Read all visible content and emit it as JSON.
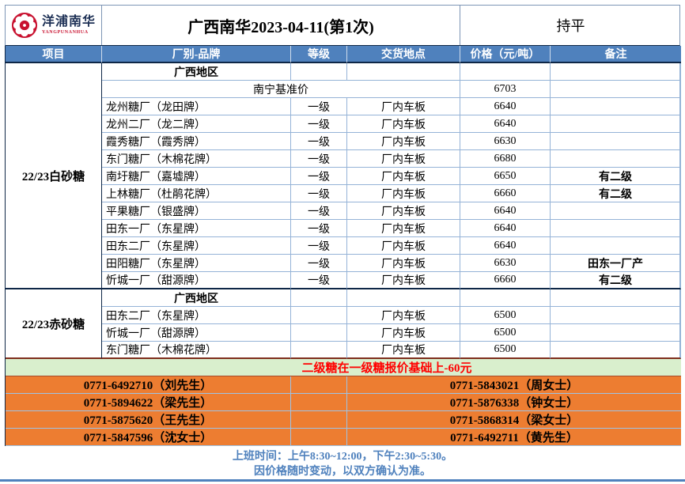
{
  "header": {
    "logo_cn": "洋浦南华",
    "logo_en": "YANGPUNANHUA",
    "title": "广西南华2023-04-11(第1次)",
    "status": "持平"
  },
  "table": {
    "columns": [
      "项目",
      "厂别-品牌",
      "等级",
      "交货地点",
      "价格（元/吨）",
      "备注"
    ],
    "sections": [
      {
        "item": "22/23白砂糖",
        "rows": [
          {
            "type": "region",
            "region": "广西地区"
          },
          {
            "type": "benchmark",
            "label": "南宁基准价",
            "price": "6703",
            "note": ""
          },
          {
            "type": "data",
            "brand": "龙州糖厂（龙田牌）",
            "grade": "一级",
            "location": "厂内车板",
            "price": "6640",
            "note": ""
          },
          {
            "type": "data",
            "brand": "龙州二厂（龙二牌）",
            "grade": "一级",
            "location": "厂内车板",
            "price": "6640",
            "note": ""
          },
          {
            "type": "data",
            "brand": "霞秀糖厂（霞秀牌）",
            "grade": "一级",
            "location": "厂内车板",
            "price": "6630",
            "note": ""
          },
          {
            "type": "data",
            "brand": "东门糖厂（木棉花牌）",
            "grade": "一级",
            "location": "厂内车板",
            "price": "6680",
            "note": ""
          },
          {
            "type": "data",
            "brand": "南圩糖厂（嘉墟牌）",
            "grade": "一级",
            "location": "厂内车板",
            "price": "6650",
            "note": "有二级"
          },
          {
            "type": "data",
            "brand": "上林糖厂（杜鹃花牌）",
            "grade": "一级",
            "location": "厂内车板",
            "price": "6660",
            "note": "有二级"
          },
          {
            "type": "data",
            "brand": "平果糖厂（银盛牌）",
            "grade": "一级",
            "location": "厂内车板",
            "price": "6640",
            "note": ""
          },
          {
            "type": "data",
            "brand": "田东一厂（东星牌）",
            "grade": "一级",
            "location": "厂内车板",
            "price": "6640",
            "note": ""
          },
          {
            "type": "data",
            "brand": "田东二厂（东星牌）",
            "grade": "一级",
            "location": "厂内车板",
            "price": "6640",
            "note": ""
          },
          {
            "type": "data",
            "brand": "田阳糖厂（东星牌）",
            "grade": "一级",
            "location": "厂内车板",
            "price": "6630",
            "note": "田东一厂产"
          },
          {
            "type": "data",
            "brand": "忻城一厂（甜源牌）",
            "grade": "一级",
            "location": "厂内车板",
            "price": "6660",
            "note": "有二级"
          }
        ]
      },
      {
        "item": "22/23赤砂糖",
        "rows": [
          {
            "type": "region",
            "region": "广西地区"
          },
          {
            "type": "data",
            "brand": "田东二厂（东星牌）",
            "grade": "",
            "location": "厂内车板",
            "price": "6500",
            "note": ""
          },
          {
            "type": "data",
            "brand": "忻城一厂（甜源牌）",
            "grade": "",
            "location": "厂内车板",
            "price": "6500",
            "note": ""
          },
          {
            "type": "data",
            "brand": "东门糖厂（木棉花牌）",
            "grade": "",
            "location": "厂内车板",
            "price": "6500",
            "note": ""
          }
        ]
      }
    ]
  },
  "notice": "二级糖在一级糖报价基础上-60元",
  "contacts": [
    {
      "left": "0771-6492710（刘先生）",
      "right": "0771-5843021（周女士）"
    },
    {
      "left": "0771-5894622（梁先生）",
      "right": "0771-5876338（钟女士）"
    },
    {
      "left": "0771-5875620（王先生）",
      "right": "0771-5868314（梁女士）"
    },
    {
      "left": "0771-5847596（沈女士）",
      "right": "0771-6492711（黄先生）"
    }
  ],
  "footer": {
    "line1": "上班时间：上午8:30~12:00，下午2:30~5:30。",
    "line2": "因价格随时变动，以双方确认为准。"
  },
  "colors": {
    "header_blue": "#4f81bd",
    "grid_light_blue": "#95b3d7",
    "section_border_dark": "#0e2747",
    "contact_orange": "#ed7d31",
    "notice_green": "#d9efcd",
    "notice_red": "#ff0000",
    "logo_red": "#c8102e",
    "footer_blue": "#4f81bd"
  }
}
